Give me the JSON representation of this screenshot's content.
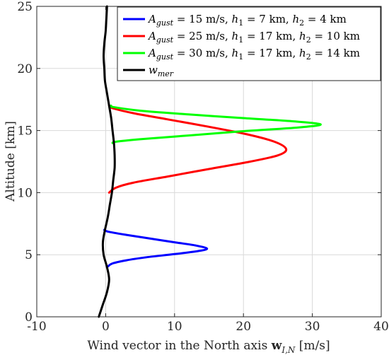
{
  "chart_data": {
    "type": "line",
    "xlabel": "Wind vector in the North axis w_{I,N} [m/s]",
    "xlabel_parts": {
      "before": "Wind vector in the North axis ",
      "bold": "w",
      "sub": "I,N",
      "after": " [m/s]"
    },
    "ylabel": "Altitude [km]",
    "xlim": [
      -10,
      40
    ],
    "ylim": [
      0,
      25
    ],
    "xticks": [
      -10,
      0,
      10,
      20,
      30,
      40
    ],
    "yticks": [
      0,
      5,
      10,
      15,
      20,
      25
    ],
    "grid": true,
    "legend_position": "top-right",
    "series": [
      {
        "name": "A_gust = 15 m/s, h1 = 7 km, h2 = 4 km",
        "legend": {
          "A": "A",
          "Asub": "gust",
          "mid": " = 15 m/s,  ",
          "h1": "h",
          "h1sub": "1",
          "h1val": " = 7 km, ",
          "h2": "h",
          "h2sub": "2",
          "h2val": " = 4 km"
        },
        "color": "#0000ff",
        "points": [
          [
            -0.2,
            7.0
          ],
          [
            0.4,
            6.85
          ],
          [
            3.0,
            6.6
          ],
          [
            6.5,
            6.3
          ],
          [
            10.0,
            6.0
          ],
          [
            13.0,
            5.75
          ],
          [
            14.7,
            5.5
          ],
          [
            13.5,
            5.3
          ],
          [
            10.0,
            5.05
          ],
          [
            6.0,
            4.8
          ],
          [
            3.0,
            4.55
          ],
          [
            1.0,
            4.3
          ],
          [
            0.2,
            4.0
          ]
        ]
      },
      {
        "name": "A_gust = 25 m/s, h1 = 17 km, h2 = 10 km",
        "legend": {
          "A": "A",
          "Asub": "gust",
          "mid": " = 25 m/s,  ",
          "h1": "h",
          "h1sub": "1",
          "h1val": " = 17 km, ",
          "h2": "h",
          "h2sub": "2",
          "h2val": " = 10 km"
        },
        "color": "#ff0000",
        "points": [
          [
            0.5,
            17.0
          ],
          [
            1.0,
            16.8
          ],
          [
            4.0,
            16.4
          ],
          [
            9.0,
            15.9
          ],
          [
            15.0,
            15.3
          ],
          [
            20.5,
            14.7
          ],
          [
            24.5,
            14.1
          ],
          [
            26.2,
            13.5
          ],
          [
            25.0,
            13.0
          ],
          [
            21.0,
            12.5
          ],
          [
            15.0,
            11.9
          ],
          [
            9.0,
            11.3
          ],
          [
            4.0,
            10.8
          ],
          [
            1.5,
            10.4
          ],
          [
            0.5,
            10.0
          ]
        ]
      },
      {
        "name": "A_gust = 30 m/s, h1 = 17 km, h2 = 14 km",
        "legend": {
          "A": "A",
          "Asub": "gust",
          "mid": " = 30 m/s,  ",
          "h1": "h",
          "h1sub": "1",
          "h1val": " = 17 km, ",
          "h2": "h",
          "h2sub": "2",
          "h2val": " = 14 km"
        },
        "color": "#00ff00",
        "points": [
          [
            0.8,
            17.0
          ],
          [
            1.0,
            16.9
          ],
          [
            5.0,
            16.6
          ],
          [
            12.0,
            16.3
          ],
          [
            20.0,
            16.0
          ],
          [
            27.0,
            15.75
          ],
          [
            31.2,
            15.5
          ],
          [
            28.0,
            15.25
          ],
          [
            20.0,
            14.95
          ],
          [
            12.0,
            14.6
          ],
          [
            5.0,
            14.3
          ],
          [
            1.5,
            14.1
          ],
          [
            1.0,
            14.0
          ]
        ]
      },
      {
        "name": "w_mer",
        "legend": {
          "w": "w",
          "wsub": "mer"
        },
        "color": "#000000",
        "points": [
          [
            -1.0,
            0.0
          ],
          [
            -0.4,
            1.0
          ],
          [
            0.2,
            2.0
          ],
          [
            0.5,
            3.0
          ],
          [
            0.2,
            4.0
          ],
          [
            -0.3,
            5.0
          ],
          [
            -0.4,
            6.0
          ],
          [
            -0.1,
            7.0
          ],
          [
            0.3,
            8.0
          ],
          [
            0.6,
            9.0
          ],
          [
            0.9,
            10.0
          ],
          [
            1.1,
            11.0
          ],
          [
            1.3,
            12.0
          ],
          [
            1.3,
            13.0
          ],
          [
            1.2,
            14.0
          ],
          [
            1.0,
            15.0
          ],
          [
            0.8,
            16.0
          ],
          [
            0.5,
            17.0
          ],
          [
            0.2,
            18.0
          ],
          [
            -0.1,
            19.0
          ],
          [
            -0.2,
            20.0
          ],
          [
            -0.3,
            21.0
          ],
          [
            -0.2,
            22.0
          ],
          [
            0.0,
            23.0
          ],
          [
            0.1,
            24.0
          ],
          [
            0.2,
            25.0
          ]
        ]
      }
    ]
  }
}
